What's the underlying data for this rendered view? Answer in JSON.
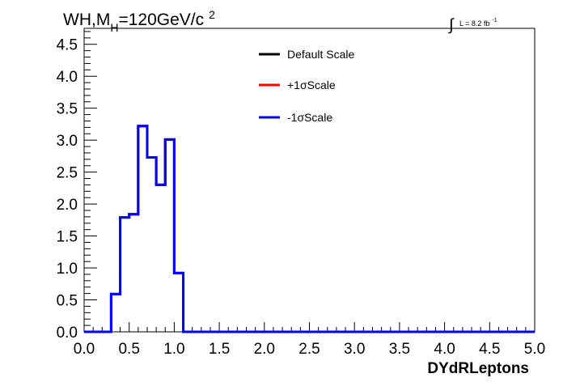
{
  "title": {
    "main": "WH,M",
    "subscript": "H",
    "rest": "=120GeV/c",
    "superscript": "2"
  },
  "lumi": {
    "integral_symbol": "∫",
    "text": "L = 8.2 fb",
    "superscript": "-1"
  },
  "chart_data": {
    "type": "line",
    "style": "step-histogram",
    "xlabel": "DYdRLeptons",
    "ylabel": "",
    "xlim": [
      0.0,
      5.0
    ],
    "ylim": [
      0.0,
      4.75
    ],
    "x_ticks": [
      "0.0",
      "0.5",
      "1.0",
      "1.5",
      "2.0",
      "2.5",
      "3.0",
      "3.5",
      "4.0",
      "4.5",
      "5.0"
    ],
    "y_ticks": [
      "0.0",
      "0.5",
      "1.0",
      "1.5",
      "2.0",
      "2.5",
      "3.0",
      "3.5",
      "4.0",
      "4.5"
    ],
    "bin_edges": [
      0.0,
      0.1,
      0.2,
      0.3,
      0.4,
      0.5,
      0.6,
      0.7,
      0.8,
      0.9,
      1.0,
      1.1,
      1.2,
      1.3,
      1.4,
      1.5,
      1.6,
      1.7,
      1.8,
      1.9,
      2.0,
      2.1,
      2.2,
      2.3,
      2.4,
      2.5,
      2.6,
      2.7,
      2.8,
      2.9,
      3.0,
      3.1,
      3.2,
      3.3,
      3.4,
      3.5,
      3.6,
      3.7,
      3.8,
      3.9,
      4.0,
      4.1,
      4.2,
      4.3,
      4.4,
      4.5,
      4.6,
      4.7,
      4.8,
      4.9,
      5.0
    ],
    "series": [
      {
        "name": "Default Scale",
        "color": "#000000",
        "values": [
          0,
          0,
          0,
          0.59,
          1.79,
          1.84,
          3.22,
          2.73,
          2.3,
          3.01,
          0.92,
          0,
          0,
          0,
          0,
          0,
          0,
          0,
          0,
          0,
          0,
          0,
          0,
          0,
          0,
          0,
          0,
          0,
          0,
          0,
          0,
          0,
          0,
          0,
          0,
          0,
          0,
          0,
          0,
          0,
          0,
          0,
          0,
          0,
          0,
          0,
          0,
          0,
          0,
          0
        ]
      },
      {
        "name": "+1σScale",
        "color": "#ff0000",
        "values": [
          0,
          0,
          0,
          0.59,
          1.79,
          1.84,
          3.22,
          2.73,
          2.3,
          3.01,
          0.92,
          0,
          0,
          0,
          0,
          0,
          0,
          0,
          0,
          0,
          0,
          0,
          0,
          0,
          0,
          0,
          0,
          0,
          0,
          0,
          0,
          0,
          0,
          0,
          0,
          0,
          0,
          0,
          0,
          0,
          0,
          0,
          0,
          0,
          0,
          0,
          0,
          0,
          0,
          0
        ]
      },
      {
        "name": "-1σScale",
        "color": "#0000ff",
        "values": [
          0,
          0,
          0,
          0.59,
          1.79,
          1.84,
          3.22,
          2.73,
          2.3,
          3.01,
          0.92,
          0,
          0,
          0,
          0,
          0,
          0,
          0,
          0,
          0,
          0,
          0,
          0,
          0,
          0,
          0,
          0,
          0,
          0,
          0,
          0,
          0,
          0,
          0,
          0,
          0,
          0,
          0,
          0,
          0,
          0,
          0,
          0,
          0,
          0,
          0,
          0,
          0,
          0,
          0
        ]
      }
    ],
    "legend": {
      "placement": "top-center",
      "entries": [
        "Default Scale",
        "+1σScale",
        "-1σScale"
      ]
    },
    "grid": false
  }
}
